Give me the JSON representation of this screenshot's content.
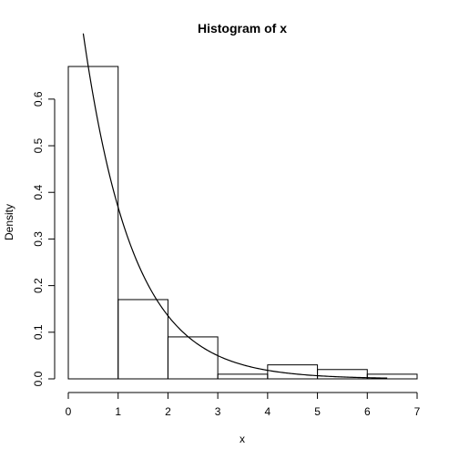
{
  "chart_data": {
    "type": "bar",
    "title": "Histogram of x",
    "xlabel": "x",
    "ylabel": "Density",
    "bins": [
      {
        "start": 0,
        "end": 1,
        "density": 0.67
      },
      {
        "start": 1,
        "end": 2,
        "density": 0.17
      },
      {
        "start": 2,
        "end": 3,
        "density": 0.09
      },
      {
        "start": 3,
        "end": 4,
        "density": 0.01
      },
      {
        "start": 4,
        "end": 5,
        "density": 0.03
      },
      {
        "start": 5,
        "end": 6,
        "density": 0.02
      },
      {
        "start": 6,
        "end": 7,
        "density": 0.01
      }
    ],
    "xlim": [
      0,
      7
    ],
    "ylim": [
      0,
      0.67
    ],
    "x_ticks": [
      "0",
      "1",
      "2",
      "3",
      "4",
      "5",
      "6",
      "7"
    ],
    "y_ticks": [
      "0.0",
      "0.1",
      "0.2",
      "0.3",
      "0.4",
      "0.5",
      "0.6"
    ],
    "curve": {
      "type": "line",
      "function": "exponential density",
      "rate": 1,
      "x_range": [
        0.3,
        6.4
      ]
    },
    "grid": false,
    "legend": "none"
  }
}
